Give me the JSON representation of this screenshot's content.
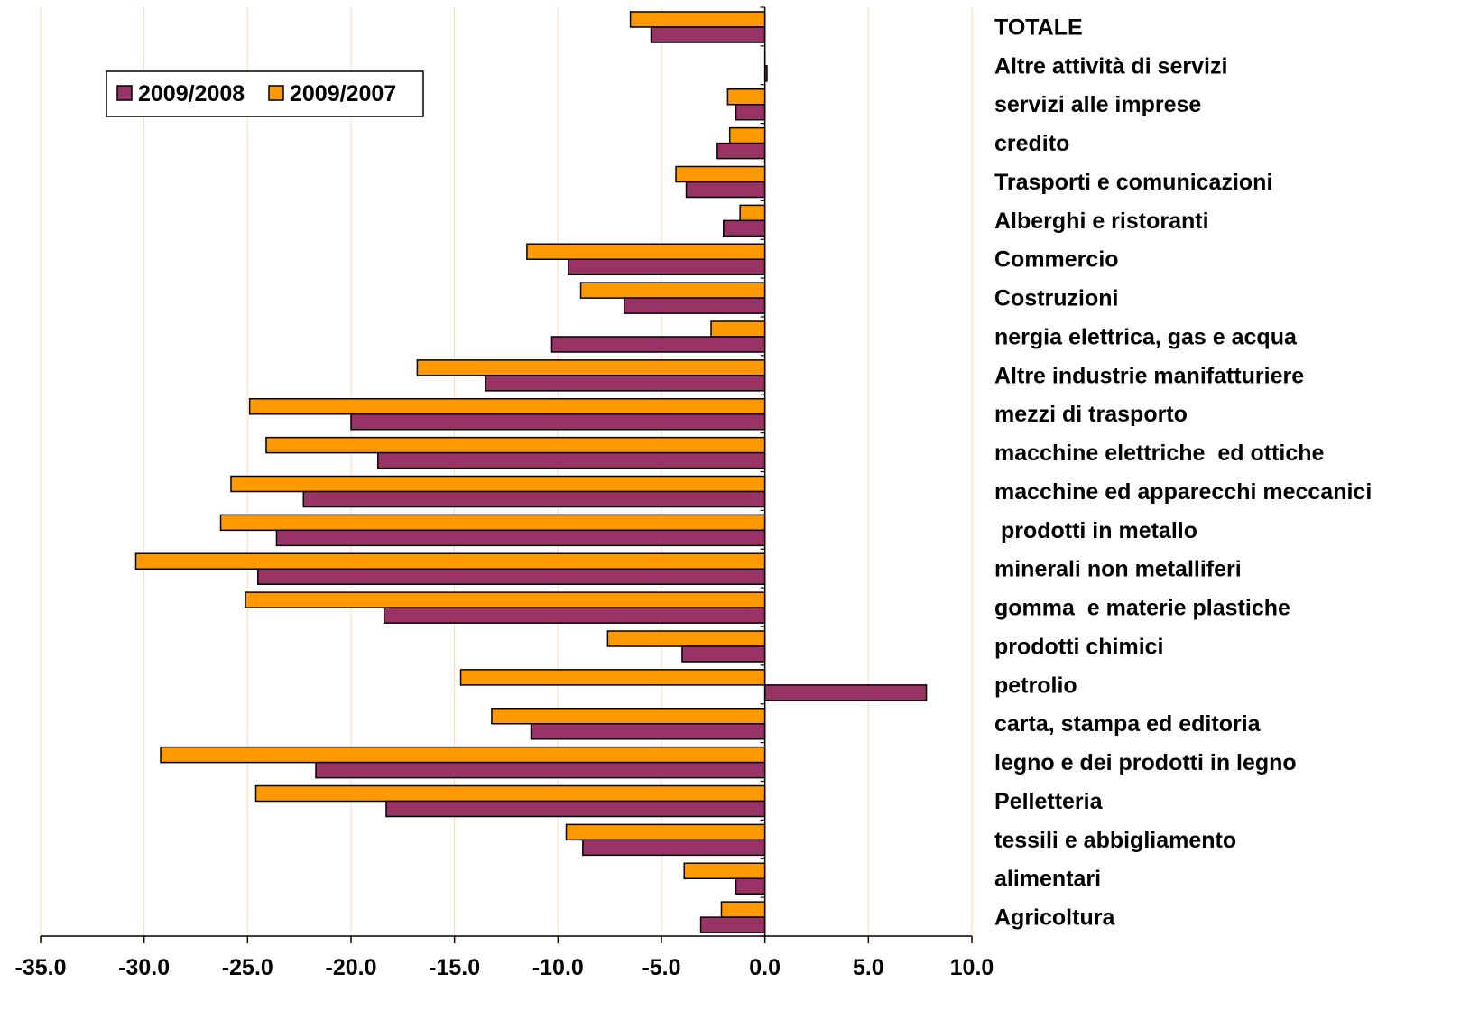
{
  "chart_data": {
    "type": "bar",
    "orientation": "horizontal",
    "categories": [
      "TOTALE",
      "Altre attività di servizi",
      "servizi alle imprese",
      "credito",
      "Trasporti e comunicazioni",
      "Alberghi e ristoranti",
      "Commercio",
      "Costruzioni",
      "nergia elettrica, gas e acqua",
      "Altre industrie manifatturiere",
      "mezzi di trasporto",
      "macchine elettriche  ed ottiche",
      "macchine ed apparecchi meccanici",
      " prodotti in metallo",
      "minerali non metalliferi",
      "gomma  e materie plastiche",
      "prodotti chimici",
      "petrolio",
      "carta, stampa ed editoria",
      "legno e dei prodotti in legno",
      "Pelletteria",
      "tessili e abbigliamento",
      "alimentari",
      "Agricoltura"
    ],
    "series": [
      {
        "name": "2009/2008",
        "color": "#993366",
        "values": [
          -5.5,
          0.1,
          -1.4,
          -2.3,
          -3.8,
          -2.0,
          -9.5,
          -6.8,
          -10.3,
          -13.5,
          -20.0,
          -18.7,
          -22.3,
          -23.6,
          -24.5,
          -18.4,
          -4.0,
          7.8,
          -11.3,
          -21.7,
          -18.3,
          -8.8,
          -1.4,
          -3.1
        ]
      },
      {
        "name": "2009/2007",
        "color": "#FF9900",
        "values": [
          -6.5,
          0.0,
          -1.8,
          -1.7,
          -4.3,
          -1.2,
          -11.5,
          -8.9,
          -2.6,
          -16.8,
          -24.9,
          -24.1,
          -25.8,
          -26.3,
          -30.4,
          -25.1,
          -7.6,
          -14.7,
          -13.2,
          -29.2,
          -24.6,
          -9.6,
          -3.9,
          -2.1
        ]
      }
    ],
    "xlim": [
      -35.0,
      10.0
    ],
    "xticks": [
      "-35.0",
      "-30.0",
      "-25.0",
      "-20.0",
      "-15.0",
      "-10.0",
      "-5.0",
      "0.0",
      "5.0",
      "10.0"
    ],
    "gridlines": true,
    "grid_color": "#FFD9B3",
    "legend_position": "top-left",
    "title": "",
    "xlabel": "",
    "ylabel": ""
  }
}
